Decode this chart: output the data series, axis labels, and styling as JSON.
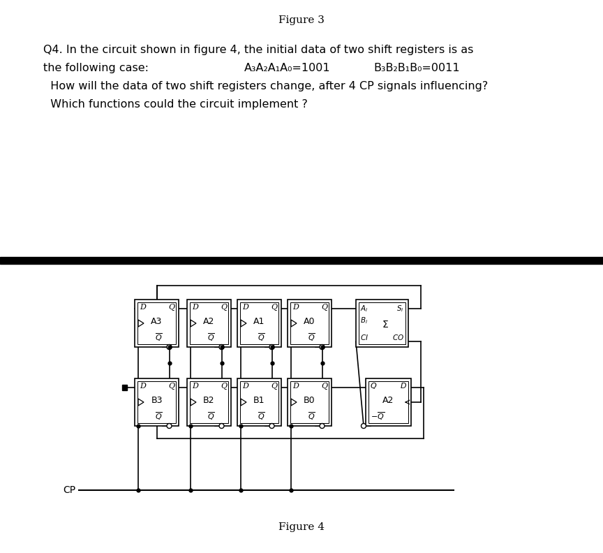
{
  "fig3_title": "Figure 3",
  "fig4_title": "Figure 4",
  "q_line1": "Q4. In the circuit shown in figure 4, the initial data of two shift registers is as",
  "q_line2": "the following case:",
  "q_eq1": "A₃A₂A₁A₀=1001",
  "q_eq2": "B₃B₂B₁B₀=0011",
  "q_line3": "  How will the data of two shift registers change, after 4 CP signals influencing?",
  "q_line4": "  Which functions could the circuit implement ?",
  "bg": "#ffffff",
  "black": "#000000"
}
